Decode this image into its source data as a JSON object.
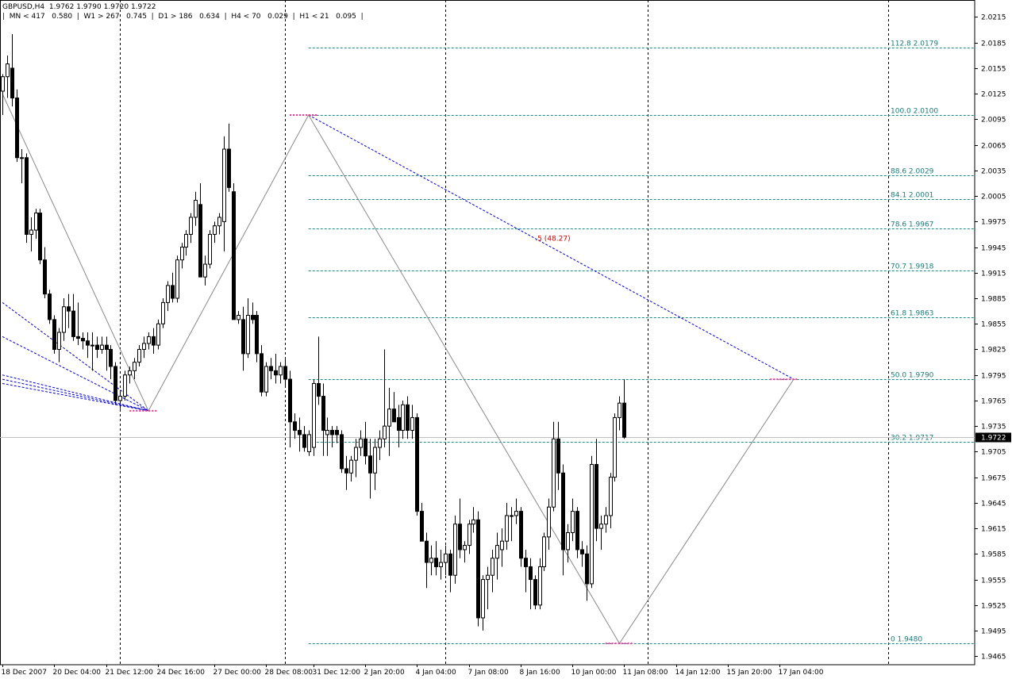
{
  "header": {
    "line1": "GBPUSD,H4  1.9762 1.9790 1.9720 1.9722",
    "line2": "|  MN < 417   0.580  |  W1 > 267   0.745  |  D1 > 186   0.634  |  H4 < 70   0.029  |  H1 < 21   0.095  |"
  },
  "current_price_label": "1.9722",
  "annotation": ".5 (48.27)",
  "colors": {
    "fib": "#1a8a8a",
    "zigzag": "#888888",
    "trend": "#0000cc",
    "marker": "#ff3399",
    "current_line": "#c0c0c0",
    "price_tag": "#000000"
  },
  "chart_data": {
    "type": "candlestick",
    "symbol": "GBPUSD",
    "timeframe": "H4",
    "ylim": [
      1.9455,
      2.0235
    ],
    "y_ticks": [
      "2.0215",
      "2.0185",
      "2.0155",
      "2.0125",
      "2.0095",
      "2.0065",
      "2.0035",
      "2.0005",
      "1.9975",
      "1.9945",
      "1.9915",
      "1.9885",
      "1.9855",
      "1.9825",
      "1.9795",
      "1.9765",
      "1.9735",
      "1.9705",
      "1.9675",
      "1.9645",
      "1.9615",
      "1.9585",
      "1.9555",
      "1.9525",
      "1.9495",
      "1.9465"
    ],
    "x_labels": [
      {
        "bar": 0,
        "label": "18 Dec 2007"
      },
      {
        "bar": 11,
        "label": "20 Dec 04:00"
      },
      {
        "bar": 22,
        "label": "21 Dec 12:00"
      },
      {
        "bar": 33,
        "label": "24 Dec 16:00"
      },
      {
        "bar": 45,
        "label": "27 Dec 00:00"
      },
      {
        "bar": 56,
        "label": "28 Dec 08:00"
      },
      {
        "bar": 66,
        "label": "31 Dec 12:00"
      },
      {
        "bar": 77,
        "label": "2 Jan 20:00"
      },
      {
        "bar": 88,
        "label": "4 Jan 04:00"
      },
      {
        "bar": 99,
        "label": "7 Jan 08:00"
      },
      {
        "bar": 110,
        "label": "8 Jan 16:00"
      },
      {
        "bar": 121,
        "label": "10 Jan 00:00"
      },
      {
        "bar": 132,
        "label": "11 Jan 08:00"
      },
      {
        "bar": 143,
        "label": "14 Jan 12:00"
      },
      {
        "bar": 154,
        "label": "15 Jan 20:00"
      },
      {
        "bar": 165,
        "label": "17 Jan 04:00"
      }
    ],
    "period_separators_bar": [
      25,
      60,
      94,
      137,
      188
    ],
    "fib_levels": [
      {
        "label": "112.8  2.0179",
        "value": 2.0179
      },
      {
        "label": "100.0  2.0100",
        "value": 2.01
      },
      {
        "label": "88.6  2.0029",
        "value": 2.0029
      },
      {
        "label": "84.1  2.0001",
        "value": 2.0001
      },
      {
        "label": "78.6  1.9967",
        "value": 1.9967
      },
      {
        "label": "70.7  1.9918",
        "value": 1.9918
      },
      {
        "label": "61.8  1.9863",
        "value": 1.9863
      },
      {
        "label": "50.0  1.9790",
        "value": 1.979
      },
      {
        "label": "30.2  1.9717",
        "value": 1.9717
      },
      {
        "label": "0  1.9480",
        "value": 1.948
      }
    ],
    "current_price": 1.9722,
    "zigzag": [
      [
        0,
        2.0125
      ],
      [
        31,
        1.9753
      ],
      [
        65,
        2.01
      ],
      [
        131,
        1.948
      ],
      [
        168,
        1.979
      ]
    ],
    "trend_line": [
      [
        65,
        2.01
      ],
      [
        168,
        1.979
      ]
    ],
    "fan_lines": [
      [
        [
          0,
          1.988
        ],
        [
          31,
          1.9753
        ]
      ],
      [
        [
          0,
          1.984
        ],
        [
          31,
          1.9753
        ]
      ],
      [
        [
          0,
          1.9795
        ],
        [
          31,
          1.9753
        ]
      ],
      [
        [
          0,
          1.979
        ],
        [
          31,
          1.9753
        ]
      ],
      [
        [
          0,
          1.9785
        ],
        [
          31,
          1.9753
        ]
      ]
    ],
    "markers": [
      {
        "x1": 27,
        "x2": 33,
        "y": 1.9753
      },
      {
        "x1": 61,
        "x2": 67,
        "y": 2.01
      },
      {
        "x1": 128,
        "x2": 134,
        "y": 1.948
      },
      {
        "x1": 163,
        "x2": 169,
        "y": 1.979
      }
    ],
    "candles": [
      [
        2.0128,
        2.0148,
        2.01,
        2.0145
      ],
      [
        2.0145,
        2.017,
        2.012,
        2.016
      ],
      [
        2.0155,
        2.0195,
        2.011,
        2.012
      ],
      [
        2.012,
        2.013,
        2.0045,
        2.005
      ],
      [
        2.005,
        2.006,
        2.002,
        2.005
      ],
      [
        2.005,
        2.0055,
        1.995,
        1.996
      ],
      [
        1.996,
        1.998,
        1.994,
        1.9965
      ],
      [
        1.9965,
        1.999,
        1.9955,
        1.9985
      ],
      [
        1.9985,
        1.999,
        1.9925,
        1.993
      ],
      [
        1.993,
        1.9945,
        1.9885,
        1.989
      ],
      [
        1.989,
        1.9895,
        1.9855,
        1.986
      ],
      [
        1.986,
        1.9865,
        1.982,
        1.9825
      ],
      [
        1.9825,
        1.985,
        1.981,
        1.9845
      ],
      [
        1.9845,
        1.9885,
        1.9835,
        1.9875
      ],
      [
        1.9875,
        1.989,
        1.985,
        1.987
      ],
      [
        1.987,
        1.989,
        1.9835,
        1.984
      ],
      [
        1.984,
        1.988,
        1.983,
        1.9838
      ],
      [
        1.9838,
        1.9845,
        1.9825,
        1.9835
      ],
      [
        1.9835,
        1.9845,
        1.9815,
        1.983
      ],
      [
        1.983,
        1.9845,
        1.98,
        1.983
      ],
      [
        1.983,
        1.984,
        1.9815,
        1.9825
      ],
      [
        1.9825,
        1.984,
        1.982,
        1.983
      ],
      [
        1.983,
        1.984,
        1.98,
        1.9825
      ],
      [
        1.9825,
        1.983,
        1.979,
        1.9805
      ],
      [
        1.9805,
        1.981,
        1.976,
        1.9765
      ],
      [
        1.9765,
        1.9775,
        1.9755,
        1.977
      ],
      [
        1.977,
        1.98,
        1.9765,
        1.9795
      ],
      [
        1.9795,
        1.9805,
        1.9785,
        1.98
      ],
      [
        1.98,
        1.9815,
        1.979,
        1.981
      ],
      [
        1.981,
        1.983,
        1.9805,
        1.9825
      ],
      [
        1.9825,
        1.984,
        1.9815,
        1.9832
      ],
      [
        1.9832,
        1.9845,
        1.9825,
        1.984
      ],
      [
        1.984,
        1.985,
        1.982,
        1.983
      ],
      [
        1.983,
        1.986,
        1.9825,
        1.9855
      ],
      [
        1.9855,
        1.9885,
        1.985,
        1.988
      ],
      [
        1.988,
        1.9905,
        1.987,
        1.99
      ],
      [
        1.99,
        1.9915,
        1.988,
        1.9885
      ],
      [
        1.9885,
        1.9935,
        1.988,
        1.993
      ],
      [
        1.993,
        1.995,
        1.992,
        1.9945
      ],
      [
        1.9945,
        1.9965,
        1.9935,
        1.996
      ],
      [
        1.996,
        1.9985,
        1.995,
        1.998
      ],
      [
        1.998,
        2.001,
        1.997,
        2.0
      ],
      [
        1.9995,
        2.002,
        1.991,
        1.991
      ],
      [
        1.991,
        1.9935,
        1.99,
        1.9925
      ],
      [
        1.9925,
        1.9965,
        1.992,
        1.996
      ],
      [
        1.996,
        1.9975,
        1.995,
        1.997
      ],
      [
        1.997,
        1.9985,
        1.996,
        1.998
      ],
      [
        1.9975,
        2.0075,
        1.994,
        2.006
      ],
      [
        2.006,
        2.009,
        2.001,
        2.0015
      ],
      [
        2.001,
        2.002,
        1.986,
        1.986
      ],
      [
        1.986,
        1.987,
        1.9855,
        1.9865
      ],
      [
        1.986,
        1.9875,
        1.98,
        1.982
      ],
      [
        1.982,
        1.9885,
        1.9815,
        1.9865
      ],
      [
        1.9865,
        1.988,
        1.9855,
        1.986
      ],
      [
        1.9865,
        1.987,
        1.981,
        1.982
      ],
      [
        1.982,
        1.983,
        1.977,
        1.9775
      ],
      [
        1.9775,
        1.981,
        1.977,
        1.9805
      ],
      [
        1.9805,
        1.9815,
        1.979,
        1.98
      ],
      [
        1.98,
        1.982,
        1.9785,
        1.9795
      ],
      [
        1.9795,
        1.981,
        1.9785,
        1.9805
      ],
      [
        1.9805,
        1.9815,
        1.978,
        1.979
      ],
      [
        1.979,
        1.98,
        1.971,
        1.974
      ],
      [
        1.974,
        1.975,
        1.972,
        1.973
      ],
      [
        1.973,
        1.9745,
        1.9705,
        1.9725
      ],
      [
        1.9725,
        1.9735,
        1.9705,
        1.971
      ],
      [
        1.9705,
        1.973,
        1.97,
        1.9725
      ],
      [
        1.971,
        1.979,
        1.97,
        1.9785
      ],
      [
        1.9785,
        1.984,
        1.976,
        1.977
      ],
      [
        1.977,
        1.9785,
        1.97,
        1.973
      ],
      [
        1.9725,
        1.9745,
        1.97,
        1.973
      ],
      [
        1.973,
        1.9735,
        1.971,
        1.9725
      ],
      [
        1.973,
        1.9735,
        1.9715,
        1.9725
      ],
      [
        1.9725,
        1.973,
        1.968,
        1.9685
      ],
      [
        1.9685,
        1.97,
        1.966,
        1.968
      ],
      [
        1.968,
        1.97,
        1.967,
        1.9695
      ],
      [
        1.9695,
        1.972,
        1.9675,
        1.971
      ],
      [
        1.971,
        1.973,
        1.97,
        1.972
      ],
      [
        1.972,
        1.974,
        1.969,
        1.97
      ],
      [
        1.97,
        1.972,
        1.965,
        1.968
      ],
      [
        1.968,
        1.972,
        1.966,
        1.971
      ],
      [
        1.971,
        1.973,
        1.9695,
        1.972
      ],
      [
        1.972,
        1.9825,
        1.971,
        1.9735
      ],
      [
        1.9735,
        1.978,
        1.97,
        1.9755
      ],
      [
        1.9755,
        1.9775,
        1.974,
        1.974
      ],
      [
        1.9745,
        1.976,
        1.971,
        1.973
      ],
      [
        1.973,
        1.9765,
        1.972,
        1.976
      ],
      [
        1.976,
        1.977,
        1.972,
        1.973
      ],
      [
        1.973,
        1.976,
        1.972,
        1.9745
      ],
      [
        1.9745,
        1.975,
        1.963,
        1.9635
      ],
      [
        1.9635,
        1.9645,
        1.96,
        1.96
      ],
      [
        1.96,
        1.961,
        1.9545,
        1.9575
      ],
      [
        1.9575,
        1.9595,
        1.956,
        1.958
      ],
      [
        1.958,
        1.96,
        1.956,
        1.957
      ],
      [
        1.957,
        1.959,
        1.9555,
        1.9575
      ],
      [
        1.9575,
        1.9595,
        1.956,
        1.9585
      ],
      [
        1.9585,
        1.959,
        1.954,
        1.956
      ],
      [
        1.956,
        1.963,
        1.955,
        1.962
      ],
      [
        1.962,
        1.965,
        1.958,
        1.959
      ],
      [
        1.959,
        1.96,
        1.9575,
        1.9595
      ],
      [
        1.9595,
        1.9625,
        1.9585,
        1.962
      ],
      [
        1.962,
        1.964,
        1.961,
        1.9625
      ],
      [
        1.9625,
        1.9635,
        1.95,
        1.951
      ],
      [
        1.951,
        1.956,
        1.9495,
        1.9555
      ],
      [
        1.9555,
        1.957,
        1.952,
        1.956
      ],
      [
        1.956,
        1.959,
        1.954,
        1.958
      ],
      [
        1.958,
        1.961,
        1.9555,
        1.9595
      ],
      [
        1.959,
        1.9615,
        1.957,
        1.96
      ],
      [
        1.96,
        1.9645,
        1.959,
        1.963
      ],
      [
        1.963,
        1.964,
        1.96,
        1.963
      ],
      [
        1.963,
        1.965,
        1.962,
        1.9635
      ],
      [
        1.9635,
        1.964,
        1.957,
        1.958
      ],
      [
        1.958,
        1.959,
        1.954,
        1.957
      ],
      [
        1.957,
        1.958,
        1.952,
        1.9555
      ],
      [
        1.9555,
        1.956,
        1.952,
        1.9525
      ],
      [
        1.9525,
        1.958,
        1.952,
        1.957
      ],
      [
        1.957,
        1.961,
        1.9565,
        1.9605
      ],
      [
        1.9605,
        1.965,
        1.959,
        1.964
      ],
      [
        1.964,
        1.974,
        1.9635,
        1.972
      ],
      [
        1.972,
        1.974,
        1.966,
        1.968
      ],
      [
        1.968,
        1.969,
        1.956,
        1.959
      ],
      [
        1.959,
        1.962,
        1.9575,
        1.961
      ],
      [
        1.961,
        1.965,
        1.96,
        1.9635
      ],
      [
        1.9635,
        1.964,
        1.958,
        1.959
      ],
      [
        1.959,
        1.96,
        1.957,
        1.9585
      ],
      [
        1.9585,
        1.9595,
        1.953,
        1.955
      ],
      [
        1.955,
        1.97,
        1.9545,
        1.969
      ],
      [
        1.969,
        1.972,
        1.96,
        1.9615
      ],
      [
        1.9615,
        1.963,
        1.959,
        1.962
      ],
      [
        1.962,
        1.964,
        1.961,
        1.963
      ],
      [
        1.963,
        1.968,
        1.9615,
        1.9675
      ],
      [
        1.9675,
        1.975,
        1.967,
        1.9745
      ],
      [
        1.9745,
        1.977,
        1.973,
        1.9762
      ],
      [
        1.9762,
        1.979,
        1.972,
        1.9722
      ]
    ]
  }
}
